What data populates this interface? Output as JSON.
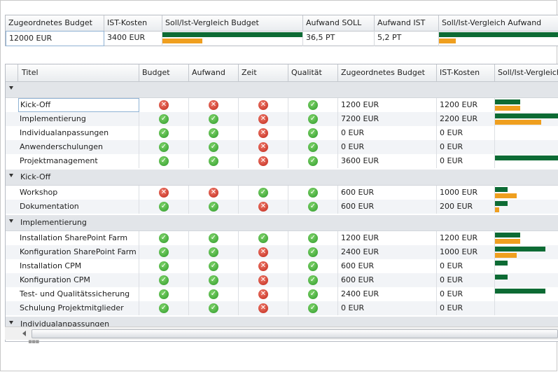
{
  "summary": {
    "headers": {
      "budget": "Zugeordnetes Budget",
      "ist_kosten": "IST-Kosten",
      "vergleich_budget": "Soll/Ist-Vergleich Budget",
      "aufwand_soll": "Aufwand SOLL",
      "aufwand_ist": "Aufwand IST",
      "vergleich_aufwand": "Soll/Ist-Vergleich Aufwand"
    },
    "values": {
      "budget": "12000 EUR",
      "ist_kosten": "3400 EUR",
      "vergleich_budget": {
        "soll": 1.0,
        "ist": 0.283
      },
      "aufwand_soll": "36,5 PT",
      "aufwand_ist": "5,2 PT",
      "vergleich_aufwand": {
        "soll": 1.0,
        "ist": 0.142
      }
    }
  },
  "grid": {
    "headers": {
      "titel": "Titel",
      "budget": "Budget",
      "aufwand": "Aufwand",
      "zeit": "Zeit",
      "qualitaet": "Qualität",
      "zugeordnet": "Zugeordnetes Budget",
      "ist_kosten": "IST-Kosten",
      "vergleich": "Soll/Ist-Vergleich Budget"
    },
    "groups": [
      {
        "label": "",
        "rows": [
          {
            "title": "Kick-Off",
            "budget": false,
            "aufwand": false,
            "zeit": false,
            "qualitaet": true,
            "zugeordnet": "1200 EUR",
            "ist": "1200 EUR",
            "soll_frac": 0.4,
            "ist_frac": 0.4
          },
          {
            "title": "Implementierung",
            "budget": true,
            "aufwand": true,
            "zeit": false,
            "qualitaet": true,
            "zugeordnet": "7200 EUR",
            "ist": "2200 EUR",
            "soll_frac": 1.0,
            "ist_frac": 0.73
          },
          {
            "title": "Individualanpassungen",
            "budget": true,
            "aufwand": true,
            "zeit": false,
            "qualitaet": true,
            "zugeordnet": "0 EUR",
            "ist": "0 EUR",
            "soll_frac": 0,
            "ist_frac": 0
          },
          {
            "title": "Anwenderschulungen",
            "budget": true,
            "aufwand": true,
            "zeit": false,
            "qualitaet": true,
            "zugeordnet": "0 EUR",
            "ist": "0 EUR",
            "soll_frac": 0,
            "ist_frac": 0
          },
          {
            "title": "Projektmanagement",
            "budget": true,
            "aufwand": true,
            "zeit": false,
            "qualitaet": true,
            "zugeordnet": "3600 EUR",
            "ist": "0 EUR",
            "soll_frac": 1.0,
            "ist_frac": 0
          }
        ]
      },
      {
        "label": "Kick-Off",
        "rows": [
          {
            "title": "Workshop",
            "budget": false,
            "aufwand": false,
            "zeit": true,
            "qualitaet": true,
            "zugeordnet": "600 EUR",
            "ist": "1000 EUR",
            "soll_frac": 0.2,
            "ist_frac": 0.34
          },
          {
            "title": "Dokumentation",
            "budget": true,
            "aufwand": true,
            "zeit": false,
            "qualitaet": true,
            "zugeordnet": "600 EUR",
            "ist": "200 EUR",
            "soll_frac": 0.2,
            "ist_frac": 0.07
          }
        ]
      },
      {
        "label": "Implementierung",
        "rows": [
          {
            "title": "Installation SharePoint Farm",
            "budget": true,
            "aufwand": true,
            "zeit": true,
            "qualitaet": true,
            "zugeordnet": "1200 EUR",
            "ist": "1200 EUR",
            "soll_frac": 0.4,
            "ist_frac": 0.4
          },
          {
            "title": "Konfiguration SharePoint Farm",
            "budget": true,
            "aufwand": true,
            "zeit": false,
            "qualitaet": true,
            "zugeordnet": "2400 EUR",
            "ist": "1000 EUR",
            "soll_frac": 0.8,
            "ist_frac": 0.34
          },
          {
            "title": "Installation CPM",
            "budget": true,
            "aufwand": true,
            "zeit": false,
            "qualitaet": true,
            "zugeordnet": "600 EUR",
            "ist": "0 EUR",
            "soll_frac": 0.2,
            "ist_frac": 0
          },
          {
            "title": "Konfiguration CPM",
            "budget": true,
            "aufwand": true,
            "zeit": false,
            "qualitaet": true,
            "zugeordnet": "600 EUR",
            "ist": "0 EUR",
            "soll_frac": 0.2,
            "ist_frac": 0
          },
          {
            "title": "Test- und Qualitätssicherung",
            "budget": true,
            "aufwand": true,
            "zeit": false,
            "qualitaet": true,
            "zugeordnet": "2400 EUR",
            "ist": "0 EUR",
            "soll_frac": 0.8,
            "ist_frac": 0
          },
          {
            "title": "Schulung Projektmitglieder",
            "budget": true,
            "aufwand": true,
            "zeit": false,
            "qualitaet": true,
            "zugeordnet": "0 EUR",
            "ist": "0 EUR",
            "soll_frac": 0,
            "ist_frac": 0
          }
        ]
      },
      {
        "label": "Individualanpassungen",
        "rows": []
      }
    ]
  },
  "colors": {
    "soll": "#0d6b34",
    "ist": "#ef9f1f",
    "ok": "#2e9a2a",
    "fail": "#c0281b"
  },
  "icons": {
    "ok": "check-circle-icon",
    "fail": "cross-circle-icon",
    "ok_glyph": "✓",
    "fail_glyph": "✕"
  }
}
